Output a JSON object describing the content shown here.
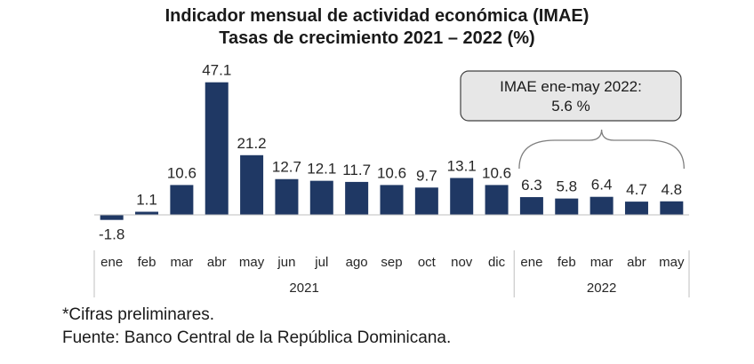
{
  "chart_data": {
    "type": "bar",
    "title": "Indicador mensual de actividad económica (IMAE)",
    "subtitle": "Tasas de crecimiento 2021 – 2022 (%)",
    "categories": [
      "ene",
      "feb",
      "mar",
      "abr",
      "may",
      "jun",
      "jul",
      "ago",
      "sep",
      "oct",
      "nov",
      "dic",
      "ene",
      "feb",
      "mar",
      "abr",
      "may"
    ],
    "values": [
      -1.8,
      1.1,
      10.6,
      47.1,
      21.2,
      12.7,
      12.1,
      11.7,
      10.6,
      9.7,
      13.1,
      10.6,
      6.3,
      5.8,
      6.4,
      4.7,
      4.8
    ],
    "value_labels": [
      "-1.8",
      "1.1",
      "10.6",
      "47.1",
      "21.2",
      "12.7",
      "12.1",
      "11.7",
      "10.6",
      "9.7",
      "13.1",
      "10.6",
      "6.3",
      "5.8",
      "6.4",
      "4.7",
      "4.8"
    ],
    "groups": [
      {
        "label": "2021",
        "count": 12
      },
      {
        "label": "2022",
        "count": 5
      }
    ],
    "annotation": {
      "line1": "IMAE ene-may 2022:",
      "line2": "5.6 %"
    },
    "bar_color": "#1f3864",
    "callout_fill": "#e7e7e7"
  },
  "notes": {
    "preliminary": "*Cifras preliminares.",
    "source": "Fuente: Banco Central de la República Dominicana."
  }
}
